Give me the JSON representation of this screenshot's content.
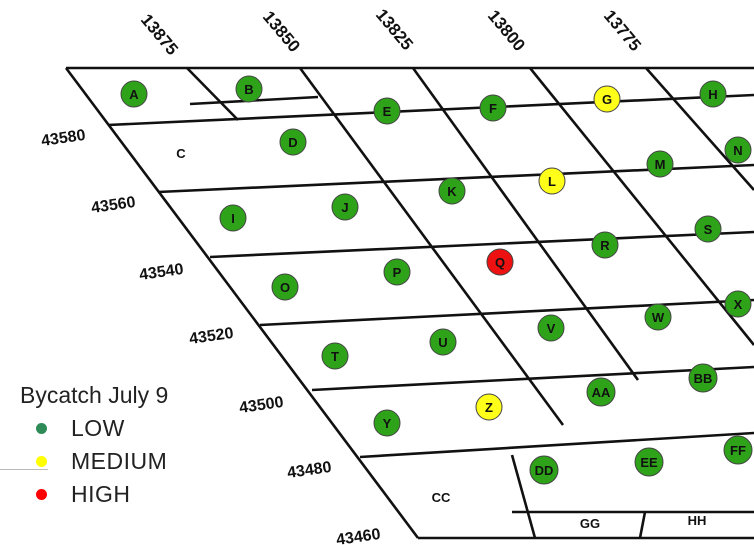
{
  "map": {
    "columns": [
      "13875",
      "13850",
      "13825",
      "13800",
      "13775"
    ],
    "rows": [
      "43580",
      "43560",
      "43540",
      "43520",
      "43500",
      "43480",
      "43460"
    ],
    "cells": [
      {
        "label": "A",
        "level": "LOW"
      },
      {
        "label": "B",
        "level": "LOW"
      },
      {
        "label": "C",
        "level": null
      },
      {
        "label": "D",
        "level": "LOW"
      },
      {
        "label": "E",
        "level": "LOW"
      },
      {
        "label": "F",
        "level": "LOW"
      },
      {
        "label": "G",
        "level": "MEDIUM"
      },
      {
        "label": "H",
        "level": "LOW"
      },
      {
        "label": "I",
        "level": "LOW"
      },
      {
        "label": "J",
        "level": "LOW"
      },
      {
        "label": "K",
        "level": "LOW"
      },
      {
        "label": "L",
        "level": "MEDIUM"
      },
      {
        "label": "M",
        "level": "LOW"
      },
      {
        "label": "N",
        "level": "LOW"
      },
      {
        "label": "O",
        "level": "LOW"
      },
      {
        "label": "P",
        "level": "LOW"
      },
      {
        "label": "Q",
        "level": "HIGH"
      },
      {
        "label": "R",
        "level": "LOW"
      },
      {
        "label": "S",
        "level": "LOW"
      },
      {
        "label": "T",
        "level": "LOW"
      },
      {
        "label": "U",
        "level": "LOW"
      },
      {
        "label": "V",
        "level": "LOW"
      },
      {
        "label": "W",
        "level": "LOW"
      },
      {
        "label": "X",
        "level": "LOW"
      },
      {
        "label": "Y",
        "level": "LOW"
      },
      {
        "label": "Z",
        "level": "MEDIUM"
      },
      {
        "label": "AA",
        "level": "LOW"
      },
      {
        "label": "BB",
        "level": "LOW"
      },
      {
        "label": "CC",
        "level": null
      },
      {
        "label": "DD",
        "level": "LOW"
      },
      {
        "label": "EE",
        "level": "LOW"
      },
      {
        "label": "FF",
        "level": "LOW"
      },
      {
        "label": "GG",
        "level": null
      },
      {
        "label": "HH",
        "level": null
      }
    ]
  },
  "legend": {
    "title": "Bycatch July 9",
    "items": [
      {
        "label": "LOW",
        "color": "#2e8b57"
      },
      {
        "label": "MEDIUM",
        "color": "#ffff00"
      },
      {
        "label": "HIGH",
        "color": "#ff0000"
      }
    ]
  },
  "colors": {
    "LOW": "#2ea31a",
    "MEDIUM": "#ffff1a",
    "HIGH": "#ee1111",
    "outline": "#444444"
  }
}
